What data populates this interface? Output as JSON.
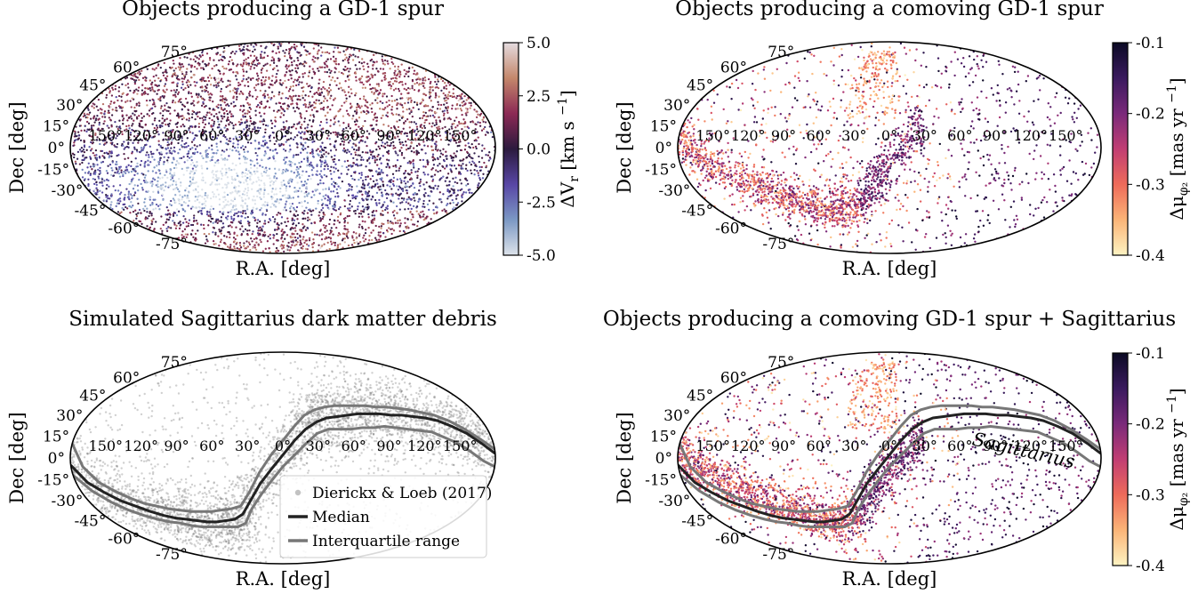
{
  "chart_data": [
    {
      "type": "scatter",
      "projection": "mollweide",
      "title": "Objects producing a GD-1 spur",
      "xlabel": "R.A. [deg]",
      "ylabel": "Dec [deg]",
      "xticks": [
        "150°",
        "120°",
        "90°",
        "60°",
        "30°",
        "0°",
        "30°",
        "60°",
        "90°",
        "120°",
        "150°"
      ],
      "yticks": [
        "75°",
        "60°",
        "45°",
        "30°",
        "15°",
        "0°",
        "-15°",
        "-30°",
        "-45°",
        "-60°",
        "-75°"
      ],
      "colorbar": {
        "label": "ΔV_r [km s^-1]",
        "label_main": "ΔV",
        "label_sub": "r",
        "label_units": "[km s",
        "label_exp": "−1",
        "label_close": "]",
        "ticks": [
          "5.0",
          "2.5",
          "0.0",
          "-2.5",
          "-5.0"
        ],
        "range": [
          -5.0,
          5.0
        ],
        "colormap": "twilight",
        "colors": [
          "#e4dbdf",
          "#c4876b",
          "#8c2a55",
          "#2c1a3e",
          "#5846a5",
          "#7b98c4",
          "#dde3ea"
        ]
      },
      "density_structures": [
        {
          "ra": [
            -180,
            -120,
            -60,
            -20,
            10,
            30
          ],
          "dec": [
            0,
            -12,
            -30,
            -25,
            5,
            25
          ],
          "color": "#4a3f9a"
        }
      ]
    },
    {
      "type": "scatter",
      "projection": "mollweide",
      "title": "Objects producing a comoving GD-1 spur",
      "xlabel": "R.A. [deg]",
      "ylabel": "Dec [deg]",
      "xticks": [
        "150°",
        "120°",
        "90°",
        "60°",
        "30°",
        "0°",
        "30°",
        "60°",
        "90°",
        "120°",
        "150°"
      ],
      "yticks": [
        "75°",
        "60°",
        "45°",
        "30°",
        "15°",
        "0°",
        "-15°",
        "-30°",
        "-45°",
        "-60°",
        "-75°"
      ],
      "colorbar": {
        "label": "Δμ_φ2 [mas yr^-1]",
        "label_main": "Δμ",
        "label_sub": "φ₂",
        "label_units": "[mas yr",
        "label_exp": "−1",
        "label_close": "]",
        "ticks": [
          "-0.1",
          "-0.2",
          "-0.3",
          "-0.4"
        ],
        "range": [
          -0.4,
          -0.1
        ],
        "colormap": "magma",
        "colors": [
          "#0b0a24",
          "#3a1a5e",
          "#7a2a7a",
          "#c13e73",
          "#ee6b5a",
          "#fbb477",
          "#fdf3c2"
        ]
      },
      "density_structures": [
        {
          "ra": [
            -180,
            -150,
            -120,
            -90,
            -60,
            -30,
            -10,
            10,
            30
          ],
          "dec": [
            5,
            -15,
            -28,
            -38,
            -45,
            -38,
            -20,
            0,
            15
          ],
          "color": "#c13e73"
        }
      ]
    },
    {
      "type": "scatter",
      "projection": "mollweide",
      "title": "Simulated Sagittarius dark matter debris",
      "xlabel": "R.A. [deg]",
      "ylabel": "Dec [deg]",
      "xticks": [
        "150°",
        "120°",
        "90°",
        "60°",
        "30°",
        "0°",
        "30°",
        "60°",
        "90°",
        "120°",
        "150°"
      ],
      "yticks": [
        "75°",
        "60°",
        "45°",
        "30°",
        "15°",
        "0°",
        "-15°",
        "-30°",
        "-45°",
        "-60°",
        "-75°"
      ],
      "legend": {
        "placement": "lower-right",
        "entries": [
          "Dierickx & Loeb (2017)",
          "Median",
          "Interquartile range"
        ]
      },
      "series": [
        {
          "name": "Dierickx & Loeb (2017)",
          "kind": "points",
          "color": "#888888"
        },
        {
          "name": "Median",
          "kind": "line",
          "color": "#222222",
          "ra": [
            -180,
            -170,
            -160,
            -150,
            -140,
            -130,
            -120,
            -110,
            -100,
            -90,
            -80,
            -70,
            -60,
            -50,
            -40,
            -30,
            -20,
            -10,
            0,
            10,
            20,
            30,
            40,
            50,
            60,
            70,
            80,
            90,
            100,
            110,
            120,
            130,
            140,
            150,
            160,
            170,
            180
          ],
          "dec": [
            -5,
            -17,
            -24,
            -30,
            -34,
            -38,
            -41,
            -43,
            -44,
            -45,
            -46,
            -46,
            -45,
            -44,
            -40,
            -30,
            -18,
            -8,
            2,
            12,
            20,
            25,
            28,
            29,
            30,
            31,
            31,
            31,
            30,
            30,
            29,
            28,
            26,
            22,
            17,
            10,
            3
          ]
        },
        {
          "name": "Interquartile range",
          "kind": "band",
          "color": "#777777",
          "ra": [
            -180,
            -170,
            -160,
            -150,
            -140,
            -130,
            -120,
            -110,
            -100,
            -90,
            -80,
            -70,
            -60,
            -50,
            -40,
            -30,
            -20,
            -10,
            0,
            10,
            20,
            30,
            40,
            50,
            60,
            70,
            80,
            90,
            100,
            110,
            120,
            130,
            140,
            150,
            160,
            170,
            180
          ],
          "dec_high": [
            10,
            -6,
            -17,
            -23,
            -28,
            -32,
            -34,
            -36,
            -37,
            -38,
            -38,
            -38,
            -37,
            -36,
            -34,
            -24,
            -10,
            2,
            12,
            22,
            30,
            34,
            36,
            37,
            37,
            37,
            37,
            36,
            36,
            35,
            34,
            32,
            30,
            26,
            20,
            13,
            6
          ],
          "dec_low": [
            -12,
            -23,
            -31,
            -37,
            -41,
            -44,
            -46,
            -47,
            -49,
            -50,
            -50,
            -50,
            -50,
            -50,
            -47,
            -36,
            -26,
            -16,
            -6,
            2,
            10,
            17,
            20,
            20,
            20,
            21,
            21,
            22,
            21,
            20,
            19,
            18,
            14,
            10,
            4,
            -2,
            -6
          ]
        }
      ]
    },
    {
      "type": "scatter",
      "projection": "mollweide",
      "title": "Objects producing a comoving GD-1 spur + Sagittarius",
      "xlabel": "R.A. [deg]",
      "ylabel": "Dec [deg]",
      "xticks": [
        "150°",
        "120°",
        "90°",
        "60°",
        "30°",
        "0°",
        "30°",
        "60°",
        "90°",
        "120°",
        "150°"
      ],
      "yticks": [
        "75°",
        "60°",
        "45°",
        "30°",
        "15°",
        "0°",
        "-15°",
        "-30°",
        "-45°",
        "-60°",
        "-75°"
      ],
      "annotation": "Sagittarius",
      "colorbar": {
        "label": "Δμ_φ2 [mas yr^-1]",
        "label_main": "Δμ",
        "label_sub": "φ₂",
        "label_units": "[mas yr",
        "label_exp": "−1",
        "label_close": "]",
        "ticks": [
          "-0.1",
          "-0.2",
          "-0.3",
          "-0.4"
        ],
        "range": [
          -0.4,
          -0.1
        ],
        "colormap": "magma",
        "colors": [
          "#0b0a24",
          "#3a1a5e",
          "#7a2a7a",
          "#c13e73",
          "#ee6b5a",
          "#fbb477",
          "#fdf3c2"
        ]
      },
      "overlay_from_panel": 2
    }
  ]
}
